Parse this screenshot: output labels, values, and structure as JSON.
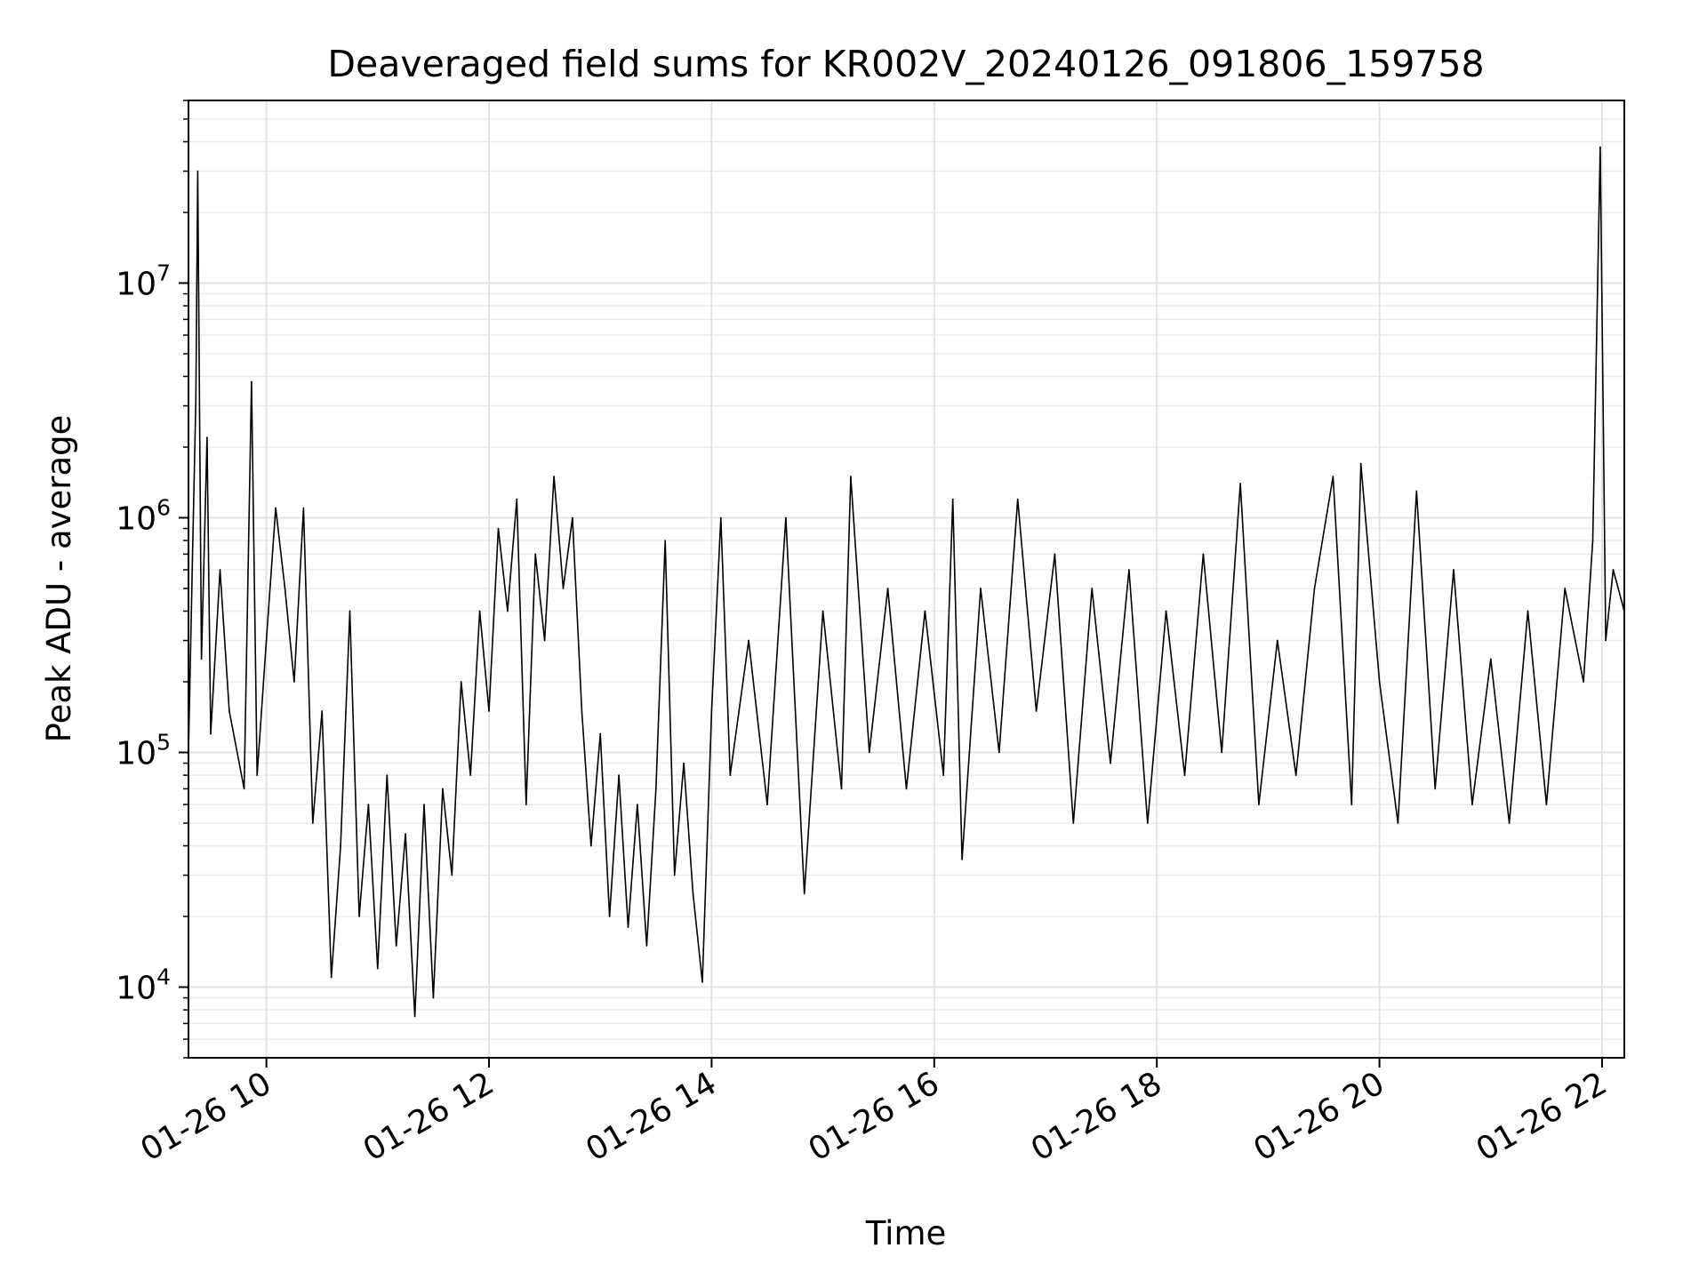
{
  "chart_data": {
    "type": "line",
    "title": "Deaveraged field sums for KR002V_20240126_091806_159758",
    "xlabel": "Time",
    "ylabel": "Peak ADU - average",
    "yscale": "log",
    "ylim": [
      5000,
      60000000
    ],
    "xlim": [
      "2024-01-26 09:18",
      "2024-01-26 22:12"
    ],
    "grid": "major and minor",
    "x_ticks": [
      {
        "x": "2024-01-26 10:00",
        "label": "01-26 10"
      },
      {
        "x": "2024-01-26 12:00",
        "label": "01-26 12"
      },
      {
        "x": "2024-01-26 14:00",
        "label": "01-26 14"
      },
      {
        "x": "2024-01-26 16:00",
        "label": "01-26 16"
      },
      {
        "x": "2024-01-26 18:00",
        "label": "01-26 18"
      },
      {
        "x": "2024-01-26 20:00",
        "label": "01-26 20"
      },
      {
        "x": "2024-01-26 22:00",
        "label": "01-26 22"
      }
    ],
    "y_ticks": [
      {
        "value": 10000,
        "base": "10",
        "exp": "4"
      },
      {
        "value": 100000,
        "base": "10",
        "exp": "5"
      },
      {
        "value": 1000000,
        "base": "10",
        "exp": "6"
      },
      {
        "value": 10000000,
        "base": "10",
        "exp": "7"
      }
    ],
    "series": [
      {
        "color": "#000000",
        "points": [
          [
            "2024-01-26 09:18",
            100000
          ],
          [
            "2024-01-26 09:20",
            600000
          ],
          [
            "2024-01-26 09:22",
            3200000
          ],
          [
            "2024-01-26 09:23",
            30000000
          ],
          [
            "2024-01-26 09:25",
            250000
          ],
          [
            "2024-01-26 09:28",
            2200000
          ],
          [
            "2024-01-26 09:30",
            120000
          ],
          [
            "2024-01-26 09:35",
            600000
          ],
          [
            "2024-01-26 09:40",
            150000
          ],
          [
            "2024-01-26 09:48",
            70000
          ],
          [
            "2024-01-26 09:52",
            3800000
          ],
          [
            "2024-01-26 09:55",
            80000
          ],
          [
            "2024-01-26 10:00",
            300000
          ],
          [
            "2024-01-26 10:05",
            1100000
          ],
          [
            "2024-01-26 10:10",
            500000
          ],
          [
            "2024-01-26 10:15",
            200000
          ],
          [
            "2024-01-26 10:20",
            1100000
          ],
          [
            "2024-01-26 10:25",
            50000
          ],
          [
            "2024-01-26 10:30",
            150000
          ],
          [
            "2024-01-26 10:35",
            11000
          ],
          [
            "2024-01-26 10:40",
            40000
          ],
          [
            "2024-01-26 10:45",
            400000
          ],
          [
            "2024-01-26 10:50",
            20000
          ],
          [
            "2024-01-26 10:55",
            60000
          ],
          [
            "2024-01-26 11:00",
            12000
          ],
          [
            "2024-01-26 11:05",
            80000
          ],
          [
            "2024-01-26 11:10",
            15000
          ],
          [
            "2024-01-26 11:15",
            45000
          ],
          [
            "2024-01-26 11:20",
            7500
          ],
          [
            "2024-01-26 11:25",
            60000
          ],
          [
            "2024-01-26 11:30",
            9000
          ],
          [
            "2024-01-26 11:35",
            70000
          ],
          [
            "2024-01-26 11:40",
            30000
          ],
          [
            "2024-01-26 11:45",
            200000
          ],
          [
            "2024-01-26 11:50",
            80000
          ],
          [
            "2024-01-26 11:55",
            400000
          ],
          [
            "2024-01-26 12:00",
            150000
          ],
          [
            "2024-01-26 12:05",
            900000
          ],
          [
            "2024-01-26 12:10",
            400000
          ],
          [
            "2024-01-26 12:15",
            1200000
          ],
          [
            "2024-01-26 12:20",
            60000
          ],
          [
            "2024-01-26 12:25",
            700000
          ],
          [
            "2024-01-26 12:30",
            300000
          ],
          [
            "2024-01-26 12:35",
            1500000
          ],
          [
            "2024-01-26 12:40",
            500000
          ],
          [
            "2024-01-26 12:45",
            1000000
          ],
          [
            "2024-01-26 12:50",
            150000
          ],
          [
            "2024-01-26 12:55",
            40000
          ],
          [
            "2024-01-26 13:00",
            120000
          ],
          [
            "2024-01-26 13:05",
            20000
          ],
          [
            "2024-01-26 13:10",
            80000
          ],
          [
            "2024-01-26 13:15",
            18000
          ],
          [
            "2024-01-26 13:20",
            60000
          ],
          [
            "2024-01-26 13:25",
            15000
          ],
          [
            "2024-01-26 13:30",
            70000
          ],
          [
            "2024-01-26 13:35",
            800000
          ],
          [
            "2024-01-26 13:40",
            30000
          ],
          [
            "2024-01-26 13:45",
            90000
          ],
          [
            "2024-01-26 13:50",
            25000
          ],
          [
            "2024-01-26 13:55",
            10500
          ],
          [
            "2024-01-26 14:00",
            150000
          ],
          [
            "2024-01-26 14:05",
            1000000
          ],
          [
            "2024-01-26 14:10",
            80000
          ],
          [
            "2024-01-26 14:20",
            300000
          ],
          [
            "2024-01-26 14:30",
            60000
          ],
          [
            "2024-01-26 14:40",
            1000000
          ],
          [
            "2024-01-26 14:50",
            25000
          ],
          [
            "2024-01-26 15:00",
            400000
          ],
          [
            "2024-01-26 15:10",
            70000
          ],
          [
            "2024-01-26 15:15",
            1500000
          ],
          [
            "2024-01-26 15:25",
            100000
          ],
          [
            "2024-01-26 15:35",
            500000
          ],
          [
            "2024-01-26 15:45",
            70000
          ],
          [
            "2024-01-26 15:55",
            400000
          ],
          [
            "2024-01-26 16:05",
            80000
          ],
          [
            "2024-01-26 16:10",
            1200000
          ],
          [
            "2024-01-26 16:15",
            35000
          ],
          [
            "2024-01-26 16:25",
            500000
          ],
          [
            "2024-01-26 16:35",
            100000
          ],
          [
            "2024-01-26 16:45",
            1200000
          ],
          [
            "2024-01-26 16:55",
            150000
          ],
          [
            "2024-01-26 17:05",
            700000
          ],
          [
            "2024-01-26 17:15",
            50000
          ],
          [
            "2024-01-26 17:25",
            500000
          ],
          [
            "2024-01-26 17:35",
            90000
          ],
          [
            "2024-01-26 17:45",
            600000
          ],
          [
            "2024-01-26 17:55",
            50000
          ],
          [
            "2024-01-26 18:05",
            400000
          ],
          [
            "2024-01-26 18:15",
            80000
          ],
          [
            "2024-01-26 18:25",
            700000
          ],
          [
            "2024-01-26 18:35",
            100000
          ],
          [
            "2024-01-26 18:45",
            1400000
          ],
          [
            "2024-01-26 18:55",
            60000
          ],
          [
            "2024-01-26 19:05",
            300000
          ],
          [
            "2024-01-26 19:15",
            80000
          ],
          [
            "2024-01-26 19:25",
            500000
          ],
          [
            "2024-01-26 19:35",
            1500000
          ],
          [
            "2024-01-26 19:45",
            60000
          ],
          [
            "2024-01-26 19:50",
            1700000
          ],
          [
            "2024-01-26 20:00",
            200000
          ],
          [
            "2024-01-26 20:10",
            50000
          ],
          [
            "2024-01-26 20:20",
            1300000
          ],
          [
            "2024-01-26 20:30",
            70000
          ],
          [
            "2024-01-26 20:40",
            600000
          ],
          [
            "2024-01-26 20:50",
            60000
          ],
          [
            "2024-01-26 21:00",
            250000
          ],
          [
            "2024-01-26 21:10",
            50000
          ],
          [
            "2024-01-26 21:20",
            400000
          ],
          [
            "2024-01-26 21:30",
            60000
          ],
          [
            "2024-01-26 21:40",
            500000
          ],
          [
            "2024-01-26 21:50",
            200000
          ],
          [
            "2024-01-26 21:55",
            800000
          ],
          [
            "2024-01-26 21:59",
            38000000
          ],
          [
            "2024-01-26 22:02",
            300000
          ],
          [
            "2024-01-26 22:06",
            600000
          ],
          [
            "2024-01-26 22:12",
            400000
          ]
        ]
      }
    ]
  }
}
